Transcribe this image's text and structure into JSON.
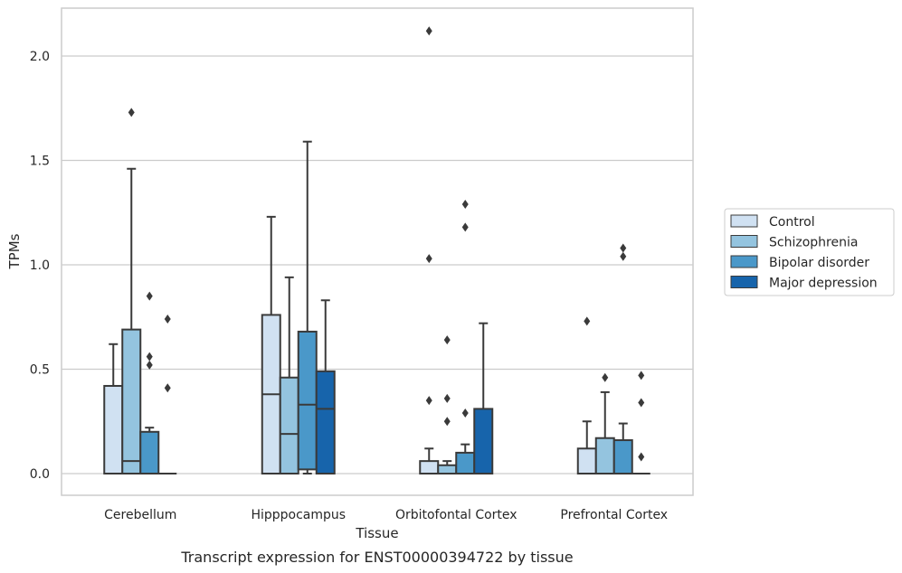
{
  "chart_data": {
    "type": "boxplot",
    "title": "",
    "caption": "Transcript expression for ENST00000394722 by tissue",
    "xlabel": "Tissue",
    "ylabel": "TPMs",
    "ylim": [
      -0.1,
      2.25
    ],
    "yticks": [
      0.0,
      0.5,
      1.0,
      1.5,
      2.0
    ],
    "ytick_labels": [
      "0.0",
      "0.5",
      "1.0",
      "1.5",
      "2.0"
    ],
    "grid": "horizontal",
    "legend_position": "outside-right",
    "categories": [
      "Cerebellum",
      "Hipppocampus",
      "Orbitofontal Cortex",
      "Prefrontal Cortex"
    ],
    "series": [
      {
        "name": "Control",
        "color": "#d0e1f2",
        "boxes": [
          {
            "whislo": 0.0,
            "q1": 0.0,
            "median": 0.0,
            "q3": 0.42,
            "whishi": 0.62,
            "fliers": []
          },
          {
            "whislo": 0.0,
            "q1": 0.0,
            "median": 0.38,
            "q3": 0.76,
            "whishi": 1.23,
            "fliers": []
          },
          {
            "whislo": 0.0,
            "q1": 0.0,
            "median": 0.0,
            "q3": 0.06,
            "whishi": 0.12,
            "fliers": [
              0.35,
              1.03,
              2.12
            ]
          },
          {
            "whislo": 0.0,
            "q1": 0.0,
            "median": 0.0,
            "q3": 0.12,
            "whishi": 0.25,
            "fliers": [
              0.73
            ]
          }
        ]
      },
      {
        "name": "Schizophrenia",
        "color": "#94c4df",
        "boxes": [
          {
            "whislo": 0.0,
            "q1": 0.0,
            "median": 0.06,
            "q3": 0.69,
            "whishi": 1.46,
            "fliers": [
              1.73
            ]
          },
          {
            "whislo": 0.0,
            "q1": 0.0,
            "median": 0.19,
            "q3": 0.46,
            "whishi": 0.94,
            "fliers": []
          },
          {
            "whislo": 0.0,
            "q1": 0.0,
            "median": 0.0,
            "q3": 0.04,
            "whishi": 0.06,
            "fliers": [
              0.25,
              0.36,
              0.64
            ]
          },
          {
            "whislo": 0.0,
            "q1": 0.0,
            "median": 0.0,
            "q3": 0.17,
            "whishi": 0.39,
            "fliers": [
              0.46
            ]
          }
        ]
      },
      {
        "name": "Bipolar disorder",
        "color": "#4a98c9",
        "boxes": [
          {
            "whislo": 0.0,
            "q1": 0.0,
            "median": 0.0,
            "q3": 0.2,
            "whishi": 0.22,
            "fliers": [
              0.52,
              0.56,
              0.85
            ]
          },
          {
            "whislo": 0.0,
            "q1": 0.02,
            "median": 0.33,
            "q3": 0.68,
            "whishi": 1.59,
            "fliers": []
          },
          {
            "whislo": 0.0,
            "q1": 0.0,
            "median": 0.0,
            "q3": 0.1,
            "whishi": 0.14,
            "fliers": [
              0.29,
              1.18,
              1.29
            ]
          },
          {
            "whislo": 0.0,
            "q1": 0.0,
            "median": 0.0,
            "q3": 0.16,
            "whishi": 0.24,
            "fliers": [
              1.04,
              1.08
            ]
          }
        ]
      },
      {
        "name": "Major depression",
        "color": "#1764ab",
        "boxes": [
          {
            "whislo": 0.0,
            "q1": 0.0,
            "median": 0.0,
            "q3": 0.0,
            "whishi": 0.0,
            "fliers": [
              0.41,
              0.74
            ]
          },
          {
            "whislo": 0.0,
            "q1": 0.0,
            "median": 0.31,
            "q3": 0.49,
            "whishi": 0.83,
            "fliers": []
          },
          {
            "whislo": 0.0,
            "q1": 0.0,
            "median": 0.0,
            "q3": 0.31,
            "whishi": 0.72,
            "fliers": []
          },
          {
            "whislo": 0.0,
            "q1": 0.0,
            "median": 0.0,
            "q3": 0.0,
            "whishi": 0.0,
            "fliers": [
              0.08,
              0.34,
              0.47
            ]
          }
        ]
      }
    ]
  }
}
